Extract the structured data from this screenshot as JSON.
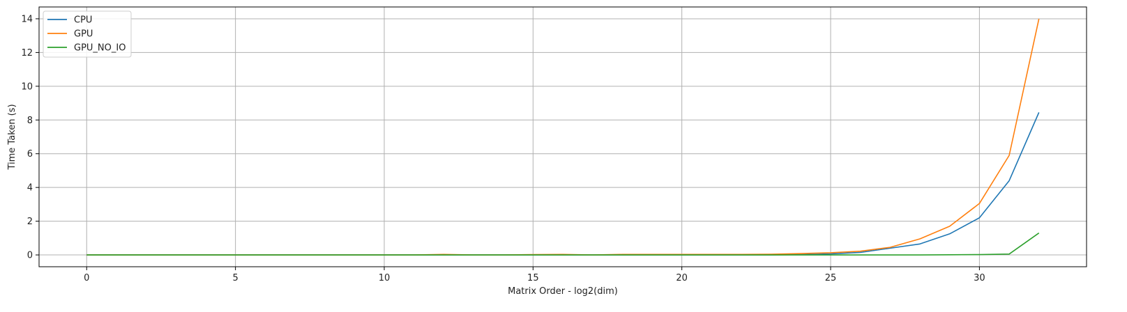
{
  "chart_data": {
    "type": "line",
    "xlabel": "Matrix Order - log2(dim)",
    "ylabel": "Time Taken (s)",
    "xlim": [
      -1.6,
      33.6
    ],
    "ylim": [
      -0.7,
      14.7
    ],
    "x_ticks": [
      0,
      5,
      10,
      15,
      20,
      25,
      30
    ],
    "y_ticks": [
      0,
      2,
      4,
      6,
      8,
      10,
      12,
      14
    ],
    "grid": true,
    "legend_position": "top-left",
    "x": [
      0,
      1,
      2,
      3,
      4,
      5,
      6,
      7,
      8,
      9,
      10,
      11,
      12,
      13,
      14,
      15,
      16,
      17,
      18,
      19,
      20,
      21,
      22,
      23,
      24,
      25,
      26,
      27,
      28,
      29,
      30,
      31,
      32
    ],
    "series": [
      {
        "name": "CPU",
        "color": "#1f77b4",
        "values": [
          0,
          0,
          0,
          0,
          0,
          0,
          0,
          0,
          0,
          0,
          0,
          0,
          0,
          0,
          0,
          0,
          0,
          0,
          0,
          0,
          0,
          0,
          0,
          0,
          0.02,
          0.06,
          0.15,
          0.4,
          0.65,
          1.25,
          2.2,
          4.4,
          8.45
        ]
      },
      {
        "name": "GPU",
        "color": "#ff7f0e",
        "values": [
          0,
          0,
          0,
          0,
          0,
          0,
          0,
          0,
          0,
          0,
          0,
          0,
          0.03,
          0,
          0,
          0.02,
          0.03,
          0,
          0.03,
          0.03,
          0.03,
          0.03,
          0.03,
          0.04,
          0.08,
          0.13,
          0.22,
          0.45,
          0.95,
          1.7,
          3.05,
          5.9,
          14.0
        ]
      },
      {
        "name": "GPU_NO_IO",
        "color": "#2ca02c",
        "values": [
          0,
          0,
          0,
          0,
          0,
          0,
          0,
          0,
          0,
          0,
          0,
          0,
          0,
          0,
          0,
          0,
          0,
          0,
          0,
          0,
          0,
          0,
          0,
          0,
          0,
          0,
          0,
          0,
          0,
          0.01,
          0.02,
          0.05,
          1.3
        ]
      }
    ]
  }
}
